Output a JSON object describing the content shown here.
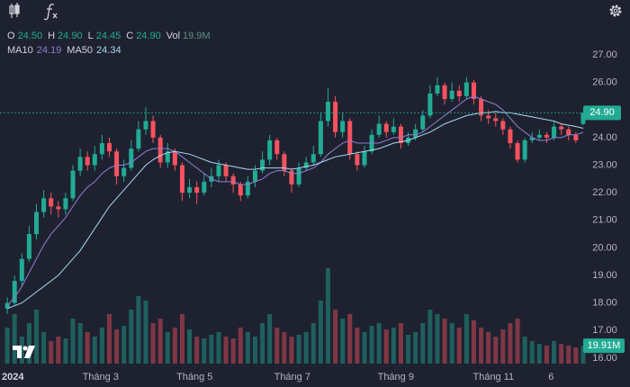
{
  "chart_data": {
    "type": "candlestick",
    "up_color": "#22ab94",
    "down_color": "#f7525f",
    "ohlc_legend": [
      {
        "name": "O",
        "value": "24.50"
      },
      {
        "name": "H",
        "value": "24.90"
      },
      {
        "name": "L",
        "value": "24.45"
      },
      {
        "name": "C",
        "value": "24.90"
      },
      {
        "name": "Vol",
        "value": "19.9M"
      }
    ],
    "open": [
      17.8,
      18.0,
      18.8,
      19.6,
      20.5,
      21.3,
      21.8,
      21.5,
      21.4,
      21.8,
      22.8,
      23.3,
      23.0,
      23.4,
      23.8,
      23.5,
      22.6,
      22.9,
      23.6,
      24.3,
      24.6,
      24.0,
      23.1,
      23.5,
      23.0,
      22.0,
      22.2,
      22.0,
      22.4,
      22.6,
      23.0,
      22.6,
      22.3,
      21.9,
      22.4,
      22.8,
      23.2,
      23.9,
      23.4,
      22.8,
      22.3,
      22.9,
      23.1,
      23.4,
      24.6,
      25.3,
      24.2,
      24.6,
      23.4,
      23.0,
      23.5,
      24.1,
      24.5,
      24.2,
      24.4,
      23.8,
      24.0,
      24.3,
      24.8,
      25.6,
      25.9,
      25.4,
      25.7,
      25.5,
      26.0,
      25.4,
      24.8,
      24.7,
      24.6,
      24.3,
      23.8,
      23.2,
      23.9,
      24.0,
      24.1,
      24.0,
      24.4,
      24.3,
      24.1,
      24.5
    ],
    "high": [
      18.2,
      19.0,
      19.8,
      20.8,
      21.6,
      22.1,
      22.0,
      21.7,
      22.0,
      23.0,
      23.6,
      23.5,
      23.7,
      24.1,
      24.0,
      23.6,
      23.2,
      23.9,
      24.6,
      25.1,
      24.8,
      24.1,
      23.8,
      23.6,
      23.1,
      22.5,
      22.4,
      22.7,
      22.9,
      23.2,
      23.1,
      22.7,
      22.4,
      22.6,
      23.0,
      23.5,
      24.1,
      24.0,
      23.5,
      22.9,
      23.1,
      23.3,
      23.7,
      24.9,
      25.8,
      25.5,
      24.9,
      24.7,
      23.5,
      23.7,
      24.3,
      24.8,
      24.6,
      24.7,
      24.5,
      24.2,
      24.5,
      25.0,
      25.9,
      26.2,
      26.0,
      26.0,
      25.9,
      26.2,
      26.1,
      25.5,
      25.0,
      24.9,
      24.7,
      24.4,
      23.9,
      24.0,
      24.2,
      24.3,
      24.2,
      24.6,
      24.5,
      24.4,
      24.2,
      24.9
    ],
    "low": [
      17.6,
      17.9,
      18.6,
      19.5,
      20.3,
      21.1,
      21.2,
      21.1,
      21.2,
      21.7,
      22.6,
      22.8,
      22.8,
      23.2,
      23.3,
      22.3,
      22.4,
      22.8,
      23.5,
      24.1,
      23.8,
      22.9,
      22.9,
      22.8,
      21.7,
      21.8,
      21.6,
      21.9,
      22.2,
      22.4,
      22.4,
      22.0,
      21.7,
      21.8,
      22.2,
      22.7,
      23.0,
      23.2,
      22.6,
      22.0,
      22.2,
      22.8,
      23.0,
      23.3,
      24.4,
      24.0,
      24.0,
      23.2,
      22.8,
      22.9,
      23.4,
      24.0,
      24.0,
      24.1,
      23.6,
      23.7,
      23.9,
      24.2,
      24.7,
      25.5,
      25.2,
      25.3,
      25.3,
      25.4,
      25.2,
      24.6,
      24.5,
      24.4,
      24.1,
      23.6,
      23.1,
      23.1,
      23.8,
      23.9,
      23.8,
      23.9,
      24.1,
      23.9,
      23.8,
      24.45
    ],
    "close": [
      18.0,
      18.8,
      19.6,
      20.5,
      21.3,
      21.8,
      21.5,
      21.4,
      21.8,
      22.8,
      23.3,
      23.0,
      23.4,
      23.8,
      23.5,
      22.6,
      22.9,
      23.6,
      24.3,
      24.6,
      24.0,
      23.1,
      23.5,
      23.0,
      22.0,
      22.2,
      22.0,
      22.4,
      22.6,
      23.0,
      22.6,
      22.3,
      21.9,
      22.4,
      22.8,
      23.2,
      23.9,
      23.4,
      22.8,
      22.3,
      22.9,
      23.1,
      23.4,
      24.6,
      25.3,
      24.2,
      24.6,
      23.4,
      23.0,
      23.5,
      24.1,
      24.5,
      24.2,
      24.4,
      23.8,
      24.0,
      24.3,
      24.8,
      25.6,
      25.9,
      25.4,
      25.7,
      25.5,
      26.0,
      25.4,
      24.8,
      24.7,
      24.6,
      24.3,
      23.8,
      23.2,
      23.9,
      24.0,
      24.1,
      24.0,
      24.4,
      24.3,
      24.1,
      23.9,
      24.9
    ],
    "volume": [
      40,
      55,
      30,
      45,
      60,
      35,
      25,
      30,
      28,
      50,
      45,
      35,
      30,
      40,
      55,
      38,
      42,
      60,
      75,
      70,
      45,
      50,
      35,
      40,
      55,
      38,
      30,
      28,
      32,
      35,
      30,
      28,
      40,
      35,
      30,
      45,
      55,
      40,
      35,
      30,
      32,
      35,
      45,
      70,
      106,
      60,
      50,
      55,
      40,
      35,
      42,
      45,
      38,
      40,
      45,
      32,
      35,
      45,
      60,
      55,
      50,
      45,
      40,
      55,
      48,
      40,
      35,
      30,
      38,
      45,
      50,
      30,
      25,
      22,
      20,
      25,
      22,
      20,
      18,
      19.91
    ],
    "series": [
      {
        "name": "MA10",
        "color": "#8f7fd1",
        "last_label": "24.19",
        "values": [
          17.9,
          18.2,
          18.6,
          19.1,
          19.6,
          20.1,
          20.5,
          20.8,
          21.1,
          21.5,
          21.9,
          22.2,
          22.4,
          22.7,
          22.9,
          23.0,
          23.0,
          23.1,
          23.3,
          23.5,
          23.6,
          23.6,
          23.6,
          23.5,
          23.3,
          23.1,
          22.9,
          22.7,
          22.5,
          22.4,
          22.4,
          22.4,
          22.3,
          22.3,
          22.4,
          22.5,
          22.7,
          22.8,
          22.8,
          22.7,
          22.7,
          22.8,
          22.9,
          23.1,
          23.4,
          23.6,
          23.8,
          23.9,
          23.8,
          23.8,
          23.8,
          23.8,
          23.9,
          24.0,
          24.0,
          24.1,
          24.1,
          24.2,
          24.4,
          24.6,
          24.8,
          25.0,
          25.2,
          25.4,
          25.5,
          25.4,
          25.3,
          25.2,
          25.0,
          24.7,
          24.4,
          24.2,
          24.0,
          23.9,
          23.9,
          24.0,
          24.0,
          24.1,
          24.1,
          24.19
        ]
      },
      {
        "name": "MA50",
        "color": "#a9d7ee",
        "last_label": "24.34",
        "values": [
          17.8,
          17.9,
          18.0,
          18.2,
          18.4,
          18.6,
          18.8,
          19.0,
          19.3,
          19.6,
          19.9,
          20.3,
          20.7,
          21.1,
          21.5,
          21.8,
          22.1,
          22.4,
          22.7,
          23.0,
          23.2,
          23.35,
          23.45,
          23.5,
          23.45,
          23.4,
          23.3,
          23.2,
          23.1,
          23.05,
          23.0,
          22.95,
          22.9,
          22.85,
          22.85,
          22.9,
          22.9,
          22.9,
          22.9,
          22.85,
          22.9,
          22.95,
          23.0,
          23.1,
          23.2,
          23.3,
          23.35,
          23.4,
          23.45,
          23.5,
          23.55,
          23.6,
          23.7,
          23.8,
          23.85,
          23.9,
          24.0,
          24.1,
          24.2,
          24.35,
          24.5,
          24.6,
          24.7,
          24.8,
          24.85,
          24.9,
          24.9,
          24.95,
          24.9,
          24.9,
          24.85,
          24.8,
          24.75,
          24.7,
          24.65,
          24.6,
          24.5,
          24.45,
          24.4,
          24.34
        ]
      }
    ],
    "xlim": [
      -1,
      79.5
    ],
    "xticks": [
      {
        "value": 0.7,
        "label": "2024"
      },
      {
        "value": 12.8,
        "label": "Tháng 3"
      },
      {
        "value": 25.7,
        "label": "Tháng 5"
      },
      {
        "value": 39.1,
        "label": "Tháng 7"
      },
      {
        "value": 53.3,
        "label": "Tháng 9"
      },
      {
        "value": 66.7,
        "label": "Tháng 11"
      },
      {
        "value": 74.6,
        "label": "6"
      }
    ],
    "ylim": [
      15.8,
      27.36
    ],
    "yticks": [
      {
        "value": 16,
        "label": "16.00"
      },
      {
        "value": 17,
        "label": "17.00"
      },
      {
        "value": 18,
        "label": "18.00"
      },
      {
        "value": 19,
        "label": "19.00"
      },
      {
        "value": 20,
        "label": "20.00"
      },
      {
        "value": 21,
        "label": "21.00"
      },
      {
        "value": 22,
        "label": "22.00"
      },
      {
        "value": 23,
        "label": "23.00"
      },
      {
        "value": 24,
        "label": "24.00"
      },
      {
        "value": 26,
        "label": "26.00"
      },
      {
        "value": 27,
        "label": "27.00"
      }
    ],
    "y2lim": [
      0,
      354
    ],
    "last_price": {
      "value": 24.9,
      "label": "24.90"
    },
    "last_volume": {
      "value": 19.91,
      "label": "19.91M"
    }
  }
}
